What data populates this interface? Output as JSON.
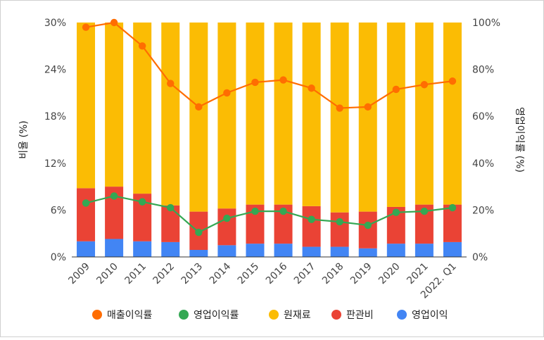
{
  "chart_data": {
    "type": "bar",
    "stacked": true,
    "categories": [
      "2009",
      "2010",
      "2011",
      "2012",
      "2013",
      "2014",
      "2015",
      "2016",
      "2017",
      "2018",
      "2019",
      "2020",
      "2021",
      "2022. Q1"
    ],
    "series": [
      {
        "name": "영업이익",
        "axis": "left",
        "color": "#4285f4",
        "values": [
          2.0,
          2.3,
          2.0,
          1.9,
          0.9,
          1.5,
          1.7,
          1.7,
          1.3,
          1.3,
          1.1,
          1.7,
          1.7,
          1.9
        ]
      },
      {
        "name": "판관비",
        "axis": "left",
        "color": "#ea4335",
        "values": [
          6.8,
          6.7,
          6.1,
          4.7,
          4.9,
          4.7,
          5.0,
          5.0,
          5.2,
          4.4,
          4.7,
          4.7,
          5.0,
          4.8
        ]
      },
      {
        "name": "원재료",
        "axis": "left",
        "color": "#fbbc04",
        "values": [
          21.2,
          21.0,
          21.9,
          23.4,
          24.2,
          23.8,
          23.3,
          23.3,
          23.5,
          24.3,
          24.2,
          23.6,
          23.3,
          23.3
        ]
      },
      {
        "name": "매출이익률",
        "type": "line",
        "axis": "right",
        "color": "#ff6d01",
        "values": [
          98,
          100,
          90,
          74,
          64,
          70,
          74.5,
          75.5,
          72,
          63.5,
          64,
          71.5,
          73.5,
          75
        ]
      },
      {
        "name": "영업이익률",
        "type": "line",
        "axis": "right",
        "color": "#34a853",
        "values": [
          23,
          26,
          23.5,
          21,
          10.5,
          16.5,
          19.5,
          19.5,
          16,
          15,
          13.5,
          19,
          19.5,
          21
        ]
      }
    ],
    "y_left": {
      "label": "비율 (%)",
      "ticks": [
        "0%",
        "6%",
        "12%",
        "18%",
        "24%",
        "30%"
      ],
      "range": [
        0,
        30
      ]
    },
    "y_right": {
      "label": "영업이익률 (%)",
      "ticks": [
        "0%",
        "20%",
        "40%",
        "60%",
        "80%",
        "100%"
      ],
      "range": [
        0,
        100
      ]
    },
    "legend": {
      "position": "bottom",
      "order": [
        "매출이익률",
        "영업이익률",
        "원재료",
        "판관비",
        "영업이익"
      ]
    },
    "grid": false
  }
}
